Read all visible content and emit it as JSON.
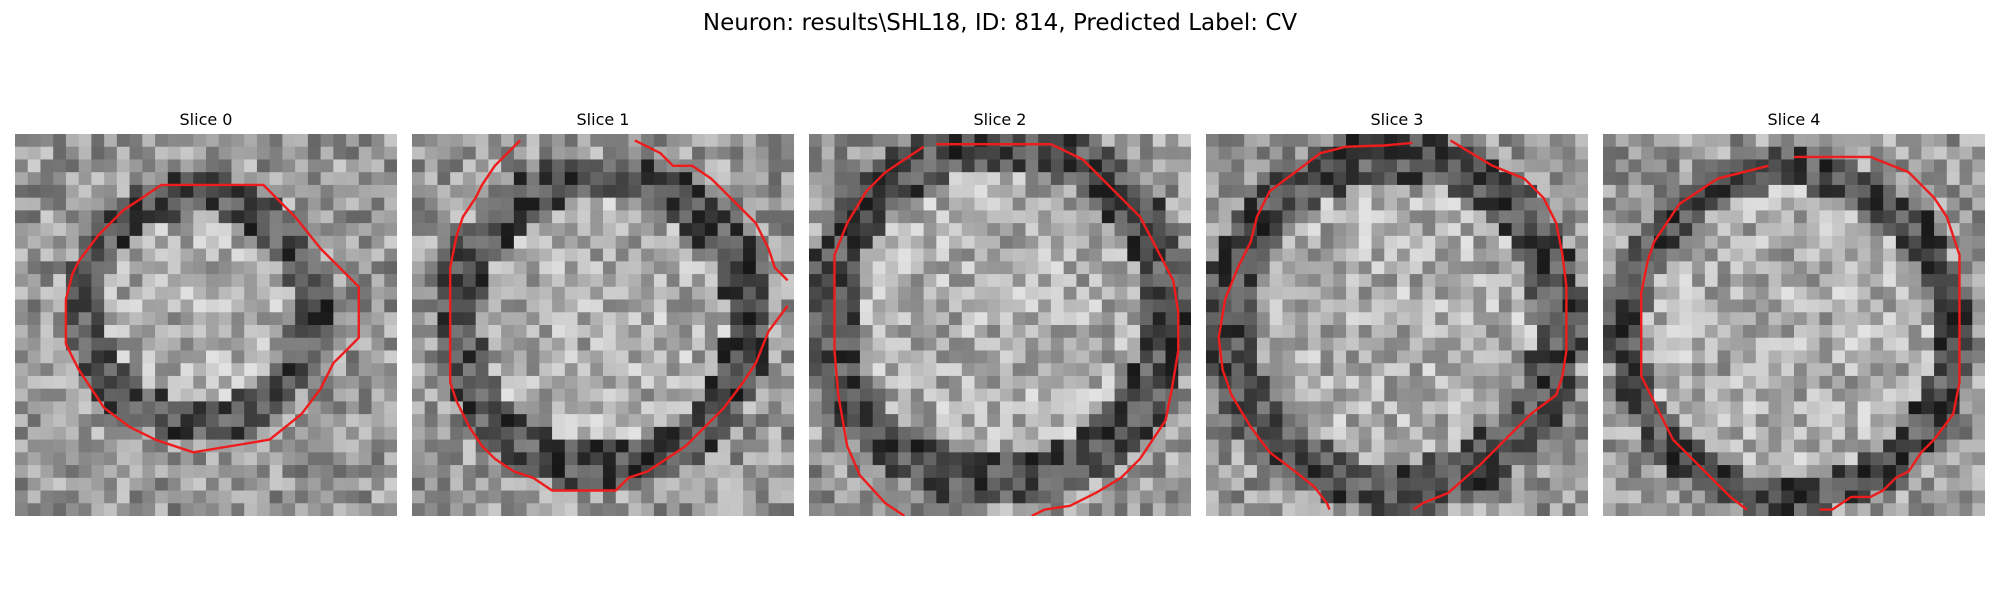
{
  "figure": {
    "title": "Neuron: results\\SHL18, ID: 814, Predicted Label: CV"
  },
  "panels": [
    {
      "title": "Slice 0"
    },
    {
      "title": "Slice 1"
    },
    {
      "title": "Slice 2"
    },
    {
      "title": "Slice 3"
    },
    {
      "title": "Slice 4"
    }
  ],
  "colors": {
    "contour": "#ee1c1c",
    "background": "#ffffff"
  },
  "image": {
    "colormap": "grayscale",
    "grid": "30x30 pixel patch"
  }
}
